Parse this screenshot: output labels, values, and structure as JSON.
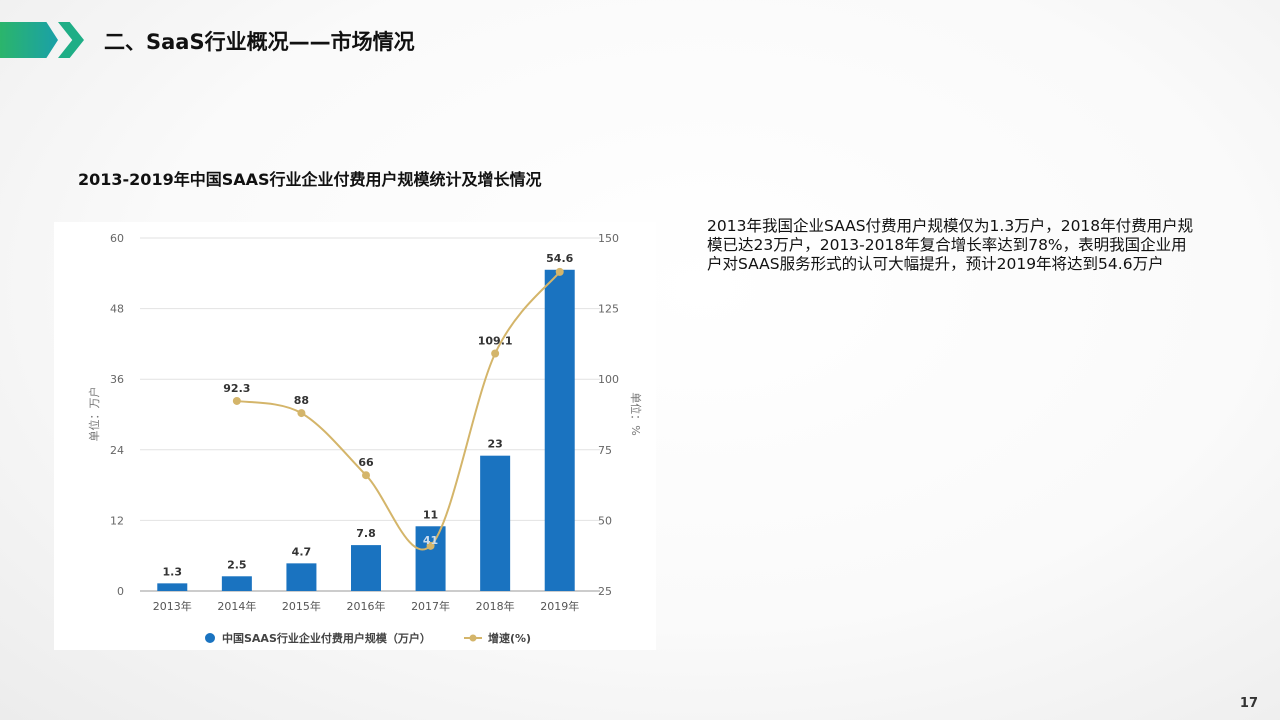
{
  "slide": {
    "title": "二、SaaS行业概况——市场情况",
    "chart_heading": "2013-2019年中国SAAS行业企业付费用户规模统计及增长情况",
    "description": "2013年我国企业SAAS付费用户规模仅为1.3万户，2018年付费用户规模已达23万户，2013-2018年复合增长率达到78%，表明我国企业用户对SAAS服务形式的认可大幅提升，预计2019年将达到54.6万户",
    "page_number": "17"
  },
  "chart_data": {
    "type": "bar+line",
    "categories": [
      "2013年",
      "2014年",
      "2015年",
      "2016年",
      "2017年",
      "2018年",
      "2019年"
    ],
    "series": [
      {
        "name": "中国SAAS行业企业付费用户规模（万户）",
        "type": "bar",
        "axis": "left",
        "color": "#1a73c0",
        "values": [
          1.3,
          2.5,
          4.7,
          7.8,
          11,
          23,
          54.6
        ],
        "labels": [
          "1.3",
          "2.5",
          "4.7",
          "7.8",
          "11",
          "23",
          "54.6"
        ]
      },
      {
        "name": "增速(%)",
        "type": "line",
        "axis": "right",
        "color": "#d4b56a",
        "values": [
          null,
          92.3,
          88,
          66,
          41,
          109.1,
          138
        ],
        "labels": [
          "",
          "92.3",
          "88",
          "66",
          "41",
          "109.1",
          ""
        ]
      }
    ],
    "left_axis": {
      "label": "单位：万户",
      "range": [
        0,
        60
      ],
      "ticks": [
        "0",
        "12",
        "24",
        "36",
        "48",
        "60"
      ]
    },
    "right_axis": {
      "label": "单位：%",
      "range": [
        25,
        150
      ],
      "ticks": [
        "25",
        "50",
        "75",
        "100",
        "125",
        "150"
      ]
    },
    "grid": true,
    "legend": "bottom"
  }
}
